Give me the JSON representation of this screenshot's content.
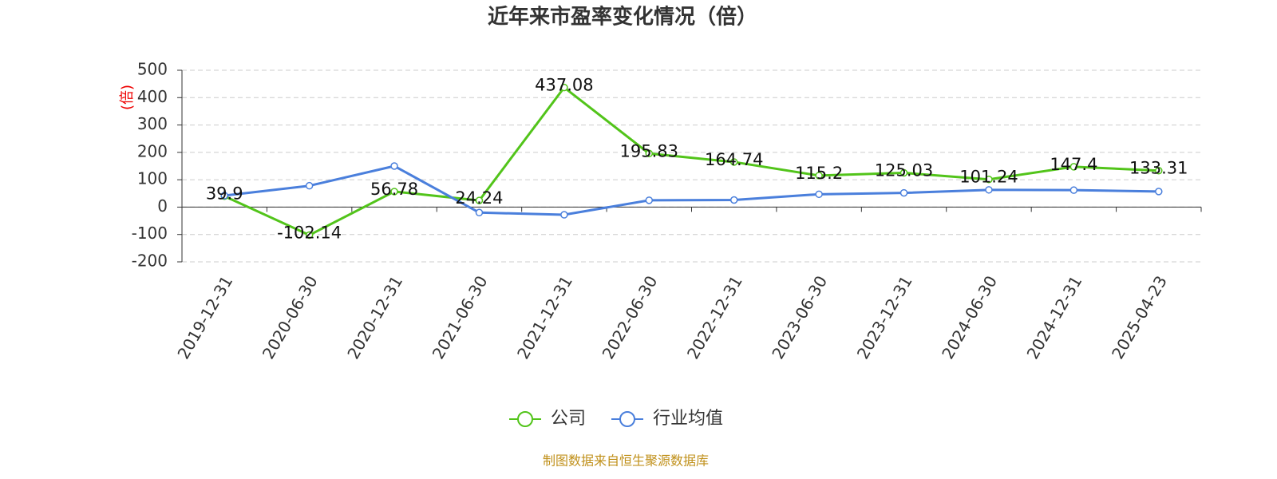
{
  "chart_data": {
    "type": "line",
    "title": "近年来市盈率变化情况（倍）",
    "y_label": "(倍)",
    "categories": [
      "2019-12-31",
      "2020-06-30",
      "2020-12-31",
      "2021-06-30",
      "2021-12-31",
      "2022-06-30",
      "2022-12-31",
      "2023-06-30",
      "2023-12-31",
      "2024-06-30",
      "2024-12-31",
      "2025-04-23"
    ],
    "series": [
      {
        "name": "公司",
        "color": "#52c41a",
        "data_labels": true,
        "values": [
          39.9,
          -102.14,
          56.78,
          24.24,
          437.08,
          195.83,
          164.74,
          115.2,
          125.03,
          101.24,
          147.4,
          133.31
        ]
      },
      {
        "name": "行业均值",
        "color": "#4a7fdc",
        "data_labels": false,
        "values": [
          42,
          78,
          150,
          -20,
          -28,
          25,
          26,
          47,
          52,
          63,
          62,
          57
        ]
      }
    ],
    "ylim": [
      -200,
      500
    ],
    "yticks": [
      -200,
      -100,
      0,
      100,
      200,
      300,
      400,
      500
    ],
    "grid": true,
    "source": "制图数据来自恒生聚源数据库"
  }
}
